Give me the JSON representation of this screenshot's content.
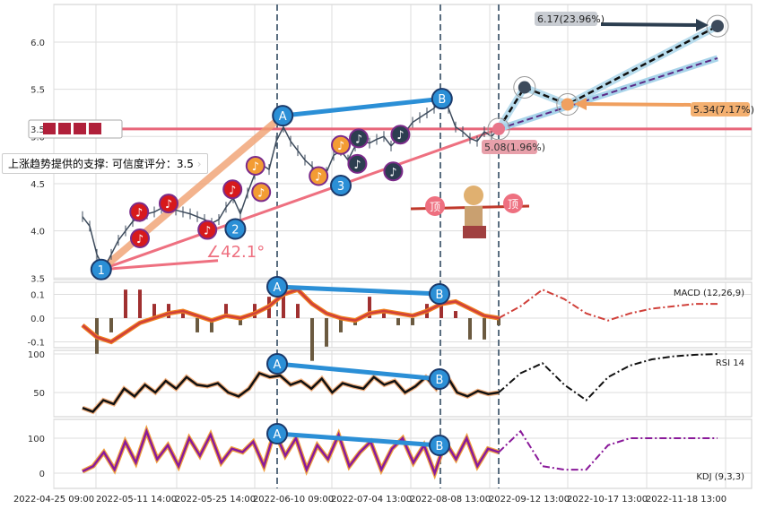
{
  "chart_data": [
    {
      "type": "line",
      "panel": "price",
      "yticks": [
        3.5,
        4.0,
        4.5,
        5.0,
        5.5,
        6.0
      ],
      "ylim": [
        3.48,
        6.38
      ],
      "xtick_labels": [
        "2022-04-25 09:00",
        "2022-05-11 14:00",
        "2022-05-25 14:00",
        "2022-06-10 09:00",
        "2022-07-04 13:00",
        "2022-08-08 13:00",
        "2022-09-12 13:00",
        "2022-10-17 13:00",
        "2022-11-18 13:00"
      ],
      "close": [
        4.15,
        4.05,
        3.75,
        3.6,
        3.75,
        3.9,
        4.0,
        4.1,
        4.15,
        4.18,
        4.2,
        4.24,
        4.26,
        4.22,
        4.2,
        4.18,
        4.15,
        4.12,
        4.08,
        4.12,
        4.25,
        4.35,
        4.18,
        4.4,
        4.6,
        4.7,
        4.65,
        4.95,
        5.1,
        4.95,
        4.85,
        4.75,
        4.68,
        4.6,
        4.62,
        4.8,
        4.85,
        4.75,
        4.9,
        4.95,
        4.93,
        4.97,
        5.0,
        4.9,
        4.98,
        5.05,
        5.15,
        5.2,
        5.25,
        5.3,
        5.4,
        5.3,
        5.1,
        5.05,
        4.98,
        4.95,
        5.05,
        5.0,
        5.08
      ],
      "support_level": {
        "value": 5.08,
        "label": "3.5",
        "stars": 4
      },
      "support_note": "上涨趋势提供的支撑: 可信度评分：3.5",
      "angle_label": "∠42.1°",
      "pivots": [
        {
          "label": "1",
          "i": 2.6,
          "price": 3.59
        },
        {
          "label": "2",
          "i": 21.3,
          "price": 4.02
        },
        {
          "label": "3",
          "i": 36,
          "price": 4.48
        },
        {
          "label": "A",
          "i": 27.9,
          "price": 5.22
        },
        {
          "label": "B",
          "i": 50.1,
          "price": 5.4
        }
      ],
      "note_markers": [
        {
          "i": 7.9,
          "price": 4.2,
          "color": "#d7191c"
        },
        {
          "i": 8,
          "price": 3.92,
          "color": "#d7191c"
        },
        {
          "i": 12,
          "price": 4.29,
          "color": "#d7191c"
        },
        {
          "i": 17.4,
          "price": 4.01,
          "color": "#d7191c"
        },
        {
          "i": 20.9,
          "price": 4.44,
          "color": "#d7191c"
        },
        {
          "i": 24.1,
          "price": 4.69,
          "color": "#f39c34"
        },
        {
          "i": 24.9,
          "price": 4.41,
          "color": "#f39c34"
        },
        {
          "i": 32.9,
          "price": 4.58,
          "color": "#f39c34"
        },
        {
          "i": 36,
          "price": 4.91,
          "color": "#f39c34"
        },
        {
          "i": 38.5,
          "price": 4.98,
          "color": "#2c3e50"
        },
        {
          "i": 38.3,
          "price": 4.71,
          "color": "#2c3e50"
        },
        {
          "i": 44.3,
          "price": 5.02,
          "color": "#2c3e50"
        },
        {
          "i": 43.3,
          "price": 4.63,
          "color": "#2c3e50"
        }
      ],
      "top_label": "顶",
      "forecast": [
        {
          "i": 58,
          "price": 5.08,
          "label": "5.08(1.96%)",
          "color": "#e8768a"
        },
        {
          "i": 61.6,
          "price": 5.52,
          "label": "",
          "color": "#3d4b5c"
        },
        {
          "i": 67.6,
          "price": 5.34,
          "label": "5.34(7.17%)",
          "color": "#f0a060"
        },
        {
          "i": 88.5,
          "price": 6.17,
          "label": "6.17(23.96%)",
          "color": "#3d4b5c"
        }
      ]
    },
    {
      "type": "line",
      "panel": "macd",
      "label": "MACD (12,26,9)",
      "yticks": [
        -0.1,
        0.0,
        0.1
      ],
      "values": [
        -0.03,
        -0.08,
        -0.1,
        -0.06,
        -0.02,
        0.0,
        0.02,
        0.03,
        0.01,
        -0.01,
        0.01,
        0.0,
        0.02,
        0.05,
        0.1,
        0.12,
        0.06,
        0.02,
        0.0,
        -0.01,
        0.02,
        0.03,
        0.02,
        0.01,
        0.03,
        0.06,
        0.07,
        0.04,
        0.01,
        0.0
      ],
      "forecast": [
        0.0,
        0.05,
        0.12,
        0.08,
        0.02,
        -0.01,
        0.02,
        0.04,
        0.05,
        0.06,
        0.06
      ]
    },
    {
      "type": "line",
      "panel": "rsi",
      "label": "RSI 14",
      "yticks": [
        50,
        100
      ],
      "values": [
        30,
        25,
        40,
        35,
        55,
        45,
        60,
        50,
        65,
        55,
        70,
        60,
        58,
        62,
        50,
        45,
        55,
        75,
        70,
        72,
        60,
        65,
        55,
        68,
        50,
        62,
        58,
        55,
        70,
        60,
        65,
        50,
        58,
        70,
        55,
        72,
        50,
        45,
        52,
        48,
        50
      ],
      "forecast": [
        50,
        75,
        88,
        60,
        40,
        70,
        85,
        93,
        97,
        99,
        100
      ]
    },
    {
      "type": "line",
      "panel": "kdj",
      "label": "KDJ (9,3,3)",
      "yticks": [
        0,
        100
      ],
      "values": [
        5,
        20,
        60,
        10,
        90,
        30,
        120,
        40,
        80,
        20,
        100,
        50,
        110,
        30,
        70,
        60,
        90,
        20,
        120,
        50,
        100,
        10,
        80,
        40,
        110,
        20,
        60,
        90,
        10,
        70,
        100,
        30,
        80,
        0,
        90,
        40,
        100,
        20,
        70,
        60
      ],
      "forecast": [
        60,
        120,
        20,
        10,
        10,
        80,
        100,
        100,
        100,
        100,
        100
      ]
    }
  ]
}
